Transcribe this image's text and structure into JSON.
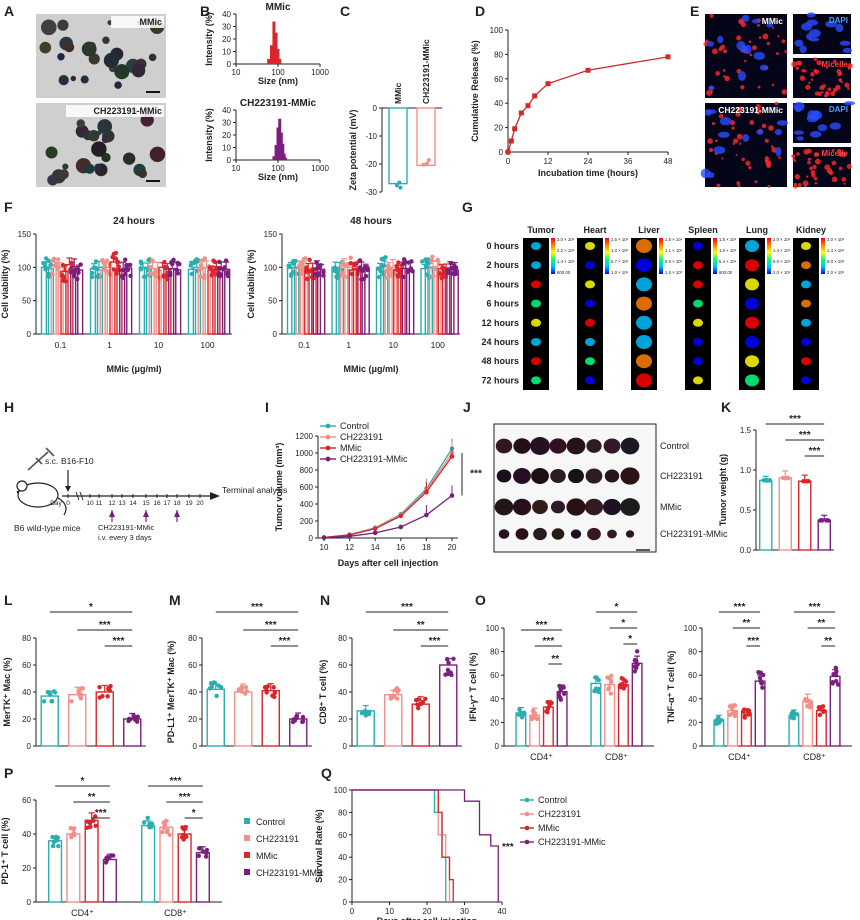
{
  "colors": {
    "control": "#2aaeb0",
    "ch223191": "#f29088",
    "mmic": "#d9252b",
    "combo": "#7a1f7e"
  },
  "panel_letters": [
    "A",
    "B",
    "C",
    "D",
    "E",
    "F",
    "G",
    "H",
    "I",
    "J",
    "K",
    "L",
    "M",
    "N",
    "O",
    "P",
    "Q"
  ],
  "panelA": {
    "labels": [
      "MMic",
      "CH223191-MMic"
    ]
  },
  "panelE": {
    "labels": [
      "MMic",
      "CH223191-MMic"
    ],
    "channel_labels": [
      "DAPI",
      "Micelle",
      "DAPI",
      "Micelle"
    ]
  },
  "panelG": {
    "organs": [
      "Tumor",
      "Heart",
      "Liver",
      "Spleen",
      "Lung",
      "Kidney"
    ],
    "times": [
      "0 hours",
      "2 hours",
      "4 hours",
      "6 hours",
      "12 hours",
      "24 hours",
      "48 hours",
      "72 hours"
    ],
    "scales": [
      [
        "3.0 × 10⁵",
        "2.2 × 10⁵",
        "1.4 × 10⁵",
        "600.00"
      ],
      [
        "1.5 × 10⁶",
        "1.0 × 10⁶",
        "5.7 × 10⁵",
        "1.0 × 10⁵"
      ],
      [
        "1.5 × 10⁴",
        "1.1 × 10⁴",
        "6.0 × 10³",
        "1.5 × 10³"
      ],
      [
        "1.5 × 10⁵",
        "1.0 × 10⁵",
        "5.4 × 10⁴",
        "600.00"
      ],
      [
        "2.0 × 10⁶",
        "1.4 × 10⁶",
        "8.0 × 10⁵",
        "2.0 × 10⁵"
      ],
      [
        "2.0 × 10⁶",
        "1.4 × 10⁶",
        "8.0 × 10⁵",
        "2.0 × 10⁵"
      ]
    ]
  },
  "panelH": {
    "injection": "s.c.",
    "cell_line": "B16-F10",
    "mouse": "B6 wild-type mice",
    "day_label": "Day",
    "days": [
      "0",
      "10",
      "11",
      "12",
      "13",
      "14",
      "15",
      "16",
      "17",
      "18",
      "19",
      "20"
    ],
    "treatment": "CH223191-MMic",
    "schedule": "i.v. every 3 days",
    "end": "Terminal analysis"
  },
  "panelJ": {
    "groups": [
      "Control",
      "CH223191",
      "MMic",
      "CH223191-MMic"
    ]
  },
  "legend": [
    "Control",
    "CH223191",
    "MMic",
    "CH223191-MMic"
  ],
  "chart_data": [
    {
      "id": "B-top",
      "type": "bar",
      "title": "MMic",
      "xlabel": "Size (nm)",
      "ylabel": "Intensity (%)",
      "xscale": "log",
      "xlim": [
        10,
        1000
      ],
      "ylim": [
        0,
        40
      ],
      "xticks": [
        "10",
        "100",
        "1000"
      ],
      "yticks": [
        "0",
        "10",
        "20",
        "30",
        "40"
      ],
      "x": [
        60,
        70,
        80,
        90,
        100,
        110
      ],
      "values": [
        4,
        15,
        34,
        25,
        12,
        4
      ]
    },
    {
      "id": "B-bottom",
      "type": "bar",
      "title": "CH223191-MMic",
      "xlabel": "Size (nm)",
      "ylabel": "Intensity (%)",
      "xscale": "log",
      "xlim": [
        10,
        1000
      ],
      "ylim": [
        0,
        40
      ],
      "xticks": [
        "10",
        "100",
        "1000"
      ],
      "yticks": [
        "0",
        "10",
        "20",
        "30",
        "40"
      ],
      "x": [
        80,
        90,
        100,
        110,
        120,
        130,
        140,
        150
      ],
      "values": [
        3,
        12,
        26,
        33,
        22,
        13,
        5,
        2
      ]
    },
    {
      "id": "C",
      "type": "bar",
      "ylabel": "Zeta potential (mV)",
      "ylim": [
        -30,
        0
      ],
      "yticks": [
        "0",
        "-10",
        "-20",
        "-30"
      ],
      "categories": [
        "MMic",
        "CH223191-MMic"
      ],
      "values": [
        -27,
        -20.5
      ]
    },
    {
      "id": "D",
      "type": "line",
      "xlabel": "Incubation time (hours)",
      "ylabel": "Cumulative Release (%)",
      "xlim": [
        0,
        48
      ],
      "ylim": [
        0,
        100
      ],
      "xticks": [
        "0",
        "12",
        "24",
        "36",
        "48"
      ],
      "yticks": [
        "0",
        "20",
        "40",
        "60",
        "80",
        "100"
      ],
      "x": [
        0,
        1,
        2,
        4,
        6,
        8,
        12,
        24,
        48
      ],
      "values": [
        0,
        9,
        19,
        32,
        38,
        46,
        56,
        67,
        78
      ]
    },
    {
      "id": "F-24",
      "type": "bar",
      "title": "24 hours",
      "xlabel": "MMic (μg/ml)",
      "ylabel": "Cell viability (%)",
      "ylim": [
        0,
        150
      ],
      "yticks": [
        "0",
        "50",
        "100",
        "150"
      ],
      "categories": [
        "0.1",
        "1",
        "10",
        "100"
      ],
      "series": [
        {
          "name": "Control",
          "values": [
            [
              100,
              98
            ],
            [
              98,
              100
            ],
            [
              100,
              98
            ],
            [
              97,
              100
            ]
          ]
        },
        {
          "name": "CH223191",
          "values": [
            [
              102,
              100
            ],
            [
              96,
              100
            ],
            [
              98,
              96
            ],
            [
              100,
              99
            ]
          ]
        },
        {
          "name": "MMic",
          "values": [
            [
              94,
              104
            ],
            [
              108,
              97
            ],
            [
              100,
              97
            ],
            [
              96,
              101
            ]
          ]
        },
        {
          "name": "CH223191-MMic",
          "values": [
            [
              101,
              96
            ],
            [
              97,
              99
            ],
            [
              98,
              96
            ],
            [
              99,
              97
            ]
          ]
        }
      ]
    },
    {
      "id": "F-48",
      "type": "bar",
      "title": "48 hours",
      "xlabel": "MMic (μg/ml)",
      "ylabel": "Cell viability (%)",
      "ylim": [
        0,
        150
      ],
      "yticks": [
        "0",
        "50",
        "100",
        "150"
      ],
      "categories": [
        "0.1",
        "1",
        "10",
        "100"
      ],
      "series": [
        {
          "name": "Control",
          "values": [
            [
              99,
              100
            ],
            [
              100,
              98
            ],
            [
              99,
              101
            ],
            [
              98,
              99
            ]
          ]
        },
        {
          "name": "CH223191",
          "values": [
            [
              98,
              101
            ],
            [
              102,
              100
            ],
            [
              97,
              100
            ],
            [
              101,
              98
            ]
          ]
        },
        {
          "name": "MMic",
          "values": [
            [
              97,
              96
            ],
            [
              96,
              98
            ],
            [
              96,
              99
            ],
            [
              98,
              97
            ]
          ]
        },
        {
          "name": "CH223191-MMic",
          "values": [
            [
              98,
              97
            ],
            [
              97,
              98
            ],
            [
              98,
              96
            ],
            [
              99,
              96
            ]
          ]
        }
      ]
    },
    {
      "id": "I",
      "type": "line",
      "xlabel": "Days after cell injection",
      "ylabel": "Tumor volume (mm³)",
      "xlim": [
        10,
        20
      ],
      "ylim": [
        0,
        1200
      ],
      "xticks": [
        "10",
        "12",
        "14",
        "16",
        "18",
        "20"
      ],
      "yticks": [
        "0",
        "200",
        "400",
        "600",
        "800",
        "1000",
        "1200"
      ],
      "significance": "***",
      "x": [
        10,
        12,
        14,
        16,
        18,
        20
      ],
      "series": [
        {
          "name": "Control",
          "values": [
            5,
            40,
            120,
            280,
            580,
            1050
          ]
        },
        {
          "name": "CH223191",
          "values": [
            5,
            38,
            115,
            270,
            560,
            1000
          ]
        },
        {
          "name": "MMic",
          "values": [
            5,
            36,
            110,
            260,
            540,
            960
          ]
        },
        {
          "name": "CH223191-MMic",
          "values": [
            4,
            20,
            60,
            130,
            270,
            500
          ]
        }
      ]
    },
    {
      "id": "K",
      "type": "bar",
      "ylabel": "Tumor weight (g)",
      "ylim": [
        0,
        1.5
      ],
      "yticks": [
        "0.0",
        "0.5",
        "1.0",
        "1.5"
      ],
      "categories": [
        "Control",
        "CH223191",
        "MMic",
        "CH223191-MMic"
      ],
      "values": [
        0.87,
        0.9,
        0.86,
        0.37
      ],
      "significance": [
        "***",
        "***",
        "***"
      ]
    },
    {
      "id": "L",
      "type": "bar",
      "ylabel": "MerTK⁺ Mac (%)",
      "ylim": [
        0,
        80
      ],
      "yticks": [
        "0",
        "20",
        "40",
        "60",
        "80"
      ],
      "categories": [
        "Control",
        "CH223191",
        "MMic",
        "CH223191-MMic"
      ],
      "values": [
        37,
        38,
        40,
        20
      ],
      "significance": [
        "*",
        "***",
        "***"
      ]
    },
    {
      "id": "M",
      "type": "bar",
      "ylabel": "PD-L1⁺ MerTK⁺ Mac (%)",
      "ylim": [
        0,
        80
      ],
      "yticks": [
        "0",
        "20",
        "40",
        "60",
        "80"
      ],
      "categories": [
        "Control",
        "CH223191",
        "MMic",
        "CH223191-MMic"
      ],
      "values": [
        42,
        40,
        41,
        20
      ],
      "significance": [
        "***",
        "***",
        "***"
      ]
    },
    {
      "id": "N",
      "type": "bar",
      "ylabel": "CD8⁺ T cell (%)",
      "ylim": [
        0,
        80
      ],
      "yticks": [
        "0",
        "20",
        "40",
        "60",
        "80"
      ],
      "categories": [
        "Control",
        "CH223191",
        "MMic",
        "CH223191-MMic"
      ],
      "values": [
        26,
        38,
        31,
        60
      ],
      "significance": [
        "***",
        "**",
        "***"
      ]
    },
    {
      "id": "O-left",
      "type": "bar",
      "ylabel": "IFN-γ⁺ T cell (%)",
      "ylim": [
        0,
        100
      ],
      "yticks": [
        "0",
        "20",
        "40",
        "60",
        "80",
        "100"
      ],
      "categories": [
        "CD4⁺",
        "CD8⁺"
      ],
      "series": [
        {
          "name": "Control",
          "values": [
            28,
            53
          ]
        },
        {
          "name": "CH223191",
          "values": [
            26,
            52
          ]
        },
        {
          "name": "MMic",
          "values": [
            33,
            52
          ]
        },
        {
          "name": "CH223191-MMic",
          "values": [
            46,
            70
          ]
        }
      ],
      "significance": [
        "***",
        "***",
        "**",
        "*",
        "*",
        "*"
      ]
    },
    {
      "id": "O-right",
      "type": "bar",
      "ylabel": "TNF-α⁺ T cell (%)",
      "ylim": [
        0,
        100
      ],
      "yticks": [
        "0",
        "20",
        "40",
        "60",
        "80",
        "100"
      ],
      "categories": [
        "CD4⁺",
        "CD8⁺"
      ],
      "series": [
        {
          "name": "Control",
          "values": [
            22,
            26
          ]
        },
        {
          "name": "CH223191",
          "values": [
            30,
            38
          ]
        },
        {
          "name": "MMic",
          "values": [
            28,
            30
          ]
        },
        {
          "name": "CH223191-MMic",
          "values": [
            55,
            59
          ]
        }
      ],
      "significance": [
        "***",
        "**",
        "***",
        "***",
        "**",
        "**"
      ]
    },
    {
      "id": "P",
      "type": "bar",
      "ylabel": "PD-1⁺ T cell (%)",
      "ylim": [
        0,
        60
      ],
      "yticks": [
        "0",
        "20",
        "40",
        "60"
      ],
      "categories": [
        "CD4⁺",
        "CD8⁺"
      ],
      "series": [
        {
          "name": "Control",
          "values": [
            36,
            45
          ]
        },
        {
          "name": "CH223191",
          "values": [
            40,
            44
          ]
        },
        {
          "name": "MMic",
          "values": [
            48,
            40
          ]
        },
        {
          "name": "CH223191-MMic",
          "values": [
            25,
            29
          ]
        }
      ],
      "significance": [
        "*",
        "**",
        "***",
        "***",
        "***",
        "*"
      ]
    },
    {
      "id": "Q",
      "type": "line",
      "xlabel": "Days after cell injection",
      "ylabel": "Survival Rate (%)",
      "xlim": [
        0,
        40
      ],
      "ylim": [
        0,
        100
      ],
      "xticks": [
        "0",
        "10",
        "20",
        "30",
        "40"
      ],
      "yticks": [
        "0",
        "20",
        "40",
        "60",
        "80",
        "100"
      ],
      "significance": "***",
      "series": [
        {
          "name": "Control",
          "points": [
            [
              0,
              100
            ],
            [
              22,
              100
            ],
            [
              22,
              80
            ],
            [
              24,
              80
            ],
            [
              24,
              40
            ],
            [
              25,
              40
            ],
            [
              25,
              0
            ]
          ]
        },
        {
          "name": "CH223191",
          "points": [
            [
              0,
              100
            ],
            [
              23,
              100
            ],
            [
              23,
              60
            ],
            [
              25,
              60
            ],
            [
              25,
              40
            ],
            [
              26,
              40
            ],
            [
              26,
              0
            ]
          ]
        },
        {
          "name": "MMic",
          "points": [
            [
              0,
              100
            ],
            [
              23,
              100
            ],
            [
              23,
              80
            ],
            [
              24,
              80
            ],
            [
              24,
              40
            ],
            [
              26,
              40
            ],
            [
              26,
              20
            ],
            [
              27,
              20
            ],
            [
              27,
              0
            ]
          ]
        },
        {
          "name": "CH223191-MMic",
          "points": [
            [
              0,
              100
            ],
            [
              30,
              100
            ],
            [
              30,
              90
            ],
            [
              34,
              90
            ],
            [
              34,
              60
            ],
            [
              37,
              60
            ],
            [
              37,
              50
            ],
            [
              39,
              50
            ],
            [
              39,
              0
            ]
          ]
        }
      ]
    }
  ]
}
